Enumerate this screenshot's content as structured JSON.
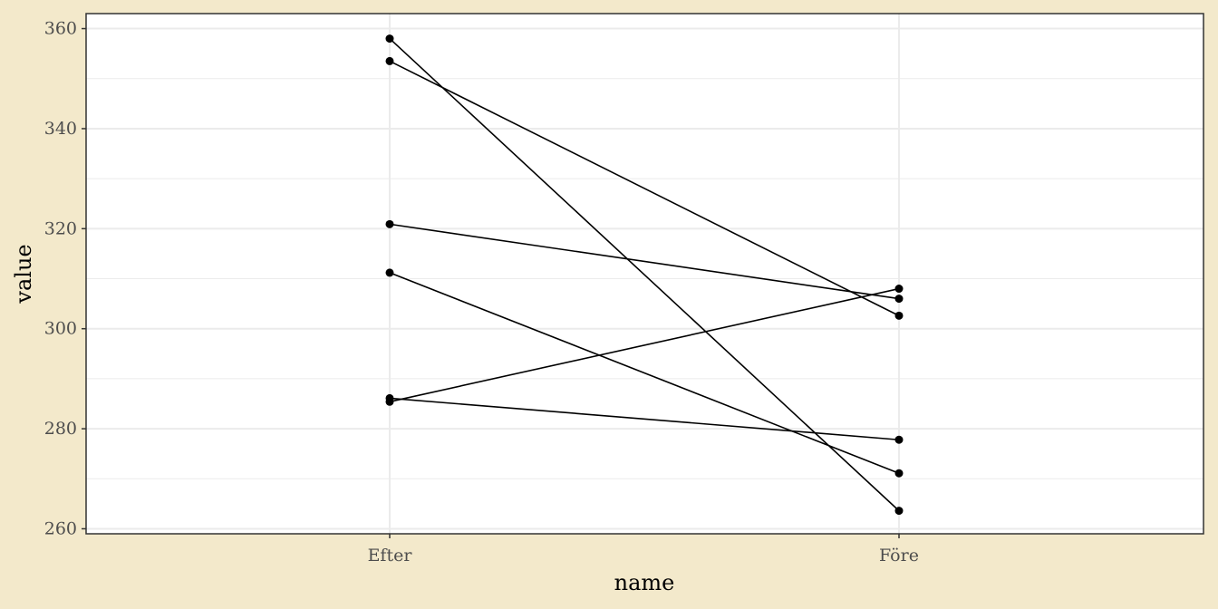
{
  "chart_data": {
    "type": "line",
    "title": "",
    "xlabel": "name",
    "ylabel": "value",
    "categories": [
      "Efter",
      "Före"
    ],
    "ylim": [
      259,
      363
    ],
    "yticks": [
      260,
      280,
      300,
      320,
      340,
      360
    ],
    "grid": true,
    "colors": {
      "background": "#f3e9cb",
      "panel": "#ffffff",
      "grid": "#ebebeb",
      "line": "#000000",
      "border": "#333333"
    },
    "series": [
      {
        "values": [
          358.0,
          263.6
        ]
      },
      {
        "values": [
          353.5,
          302.6
        ]
      },
      {
        "values": [
          320.9,
          306.0
        ]
      },
      {
        "values": [
          311.2,
          271.1
        ]
      },
      {
        "values": [
          286.1,
          277.8
        ]
      },
      {
        "values": [
          285.4,
          308.0
        ]
      }
    ]
  }
}
